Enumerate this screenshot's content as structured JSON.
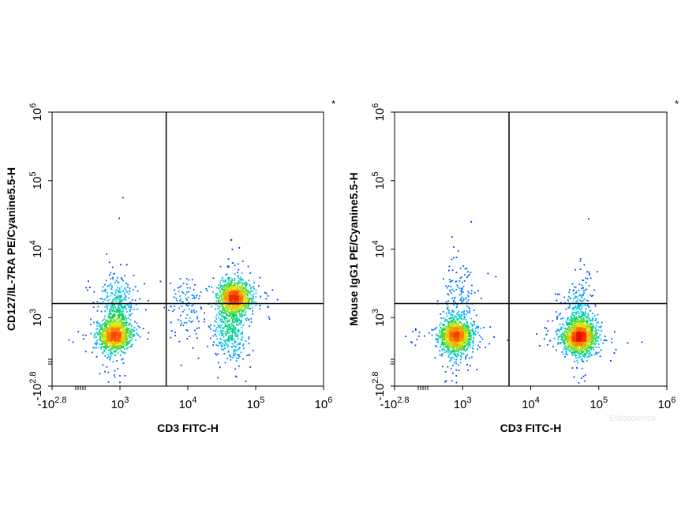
{
  "chart_data": [
    {
      "type": "scatter",
      "plot": "flow-cytometry-density",
      "xlabel": "CD3 FITC-H",
      "ylabel": "CD127/IL-7RA PE/Cyanine5.5-H",
      "x_scale": "biexponential",
      "y_scale": "biexponential",
      "xlim": [
        -631,
        1000000
      ],
      "ylim": [
        -631,
        1000000
      ],
      "x_ticks": [
        {
          "base": "-10",
          "exp": "2.8"
        },
        {
          "base": "10",
          "exp": "3"
        },
        {
          "base": "10",
          "exp": "4"
        },
        {
          "base": "10",
          "exp": "5"
        },
        {
          "base": "10",
          "exp": "6"
        }
      ],
      "y_ticks": [
        {
          "base": "-10",
          "exp": "2.8"
        },
        {
          "base": "10",
          "exp": "3"
        },
        {
          "base": "10",
          "exp": "4"
        },
        {
          "base": "10",
          "exp": "5"
        },
        {
          "base": "10",
          "exp": "6"
        }
      ],
      "gate": {
        "x": 4800,
        "y": 1600
      },
      "marker": "*",
      "populations": [
        {
          "x": 800,
          "y": 420,
          "count": 1000
        },
        {
          "x": 900,
          "y": 1500,
          "count": 350
        },
        {
          "x": 48000,
          "y": 2000,
          "count": 1100
        },
        {
          "x": 40000,
          "y": 650,
          "count": 380
        },
        {
          "x": 9000,
          "y": 1400,
          "count": 110
        }
      ]
    },
    {
      "type": "scatter",
      "plot": "flow-cytometry-density",
      "xlabel": "CD3 FITC-H",
      "ylabel": "Mouse IgG1 PE/Cyanine5.5-H",
      "x_scale": "biexponential",
      "y_scale": "biexponential",
      "xlim": [
        -631,
        1000000
      ],
      "ylim": [
        -631,
        1000000
      ],
      "x_ticks": [
        {
          "base": "-10",
          "exp": "2.8"
        },
        {
          "base": "10",
          "exp": "3"
        },
        {
          "base": "10",
          "exp": "4"
        },
        {
          "base": "10",
          "exp": "5"
        },
        {
          "base": "10",
          "exp": "6"
        }
      ],
      "y_ticks": [
        {
          "base": "-10",
          "exp": "2.8"
        },
        {
          "base": "10",
          "exp": "3"
        },
        {
          "base": "10",
          "exp": "4"
        },
        {
          "base": "10",
          "exp": "5"
        },
        {
          "base": "10",
          "exp": "6"
        }
      ],
      "gate": {
        "x": 4800,
        "y": 1600
      },
      "marker": "*",
      "populations": [
        {
          "x": 750,
          "y": 430,
          "count": 1300
        },
        {
          "x": 900,
          "y": 2500,
          "count": 110
        },
        {
          "x": 50000,
          "y": 430,
          "count": 1500
        },
        {
          "x": 50000,
          "y": 1500,
          "count": 160
        }
      ]
    }
  ],
  "watermark": "Elabscience"
}
